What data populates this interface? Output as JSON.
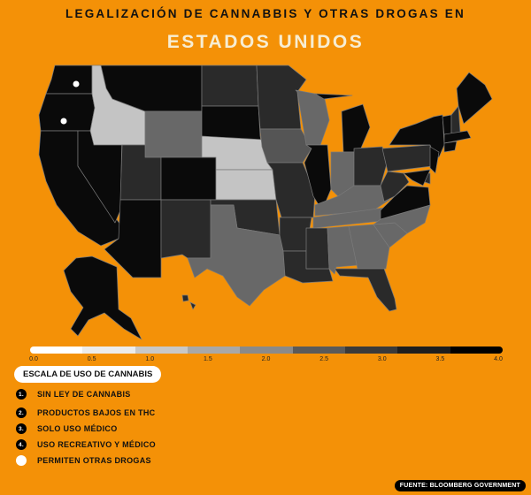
{
  "title_line1": "LEGALIZACIÓN DE CANNABBIS Y OTRAS DROGAS EN",
  "title_line2": "ESTADOS UNIDOS",
  "scale_ticks": [
    "0.0",
    "0.5",
    "1.0",
    "1.5",
    "2.0",
    "2.5",
    "3.0",
    "3.5",
    "4.0"
  ],
  "scale_colors": [
    "#ffffff",
    "#ececec",
    "#c8c8c8",
    "#a8a8a8",
    "#8a8a8a",
    "#5a5a5a",
    "#3a3a3a",
    "#1e1e1e",
    "#000000"
  ],
  "legend": {
    "title": "ESCALA DE USO DE CANNABIS",
    "items": [
      {
        "num": "1.",
        "label": "SIN LEY DE CANNABIS"
      },
      {
        "num": "2.",
        "label": "PRODUCTOS BAJOS EN THC"
      },
      {
        "num": "3.",
        "label": "SOLO USO MÉDICO"
      },
      {
        "num": "4.",
        "label": "USO RECREATIVO Y MÉDICO"
      }
    ],
    "other_drugs_label": "PERMITEN OTRAS DROGAS"
  },
  "source": "FUENTE: BLOOMBERG GOVERNMENT",
  "state_colors": {
    "WA": "#0a0a0a",
    "OR": "#0a0a0a",
    "CA": "#0a0a0a",
    "NV": "#0a0a0a",
    "ID": "#c4c4c4",
    "MT": "#0a0a0a",
    "WY": "#686868",
    "UT": "#2a2a2a",
    "CO": "#0a0a0a",
    "AZ": "#0a0a0a",
    "NM": "#2a2a2a",
    "ND": "#2a2a2a",
    "SD": "#0a0a0a",
    "NE": "#c4c4c4",
    "KS": "#c4c4c4",
    "OK": "#2a2a2a",
    "TX": "#686868",
    "MN": "#2a2a2a",
    "IA": "#555555",
    "MO": "#2a2a2a",
    "AR": "#2a2a2a",
    "LA": "#2a2a2a",
    "WI": "#686868",
    "IL": "#0a0a0a",
    "MI": "#0a0a0a",
    "IN": "#686868",
    "OH": "#2a2a2a",
    "KY": "#686868",
    "TN": "#686868",
    "MS": "#2a2a2a",
    "AL": "#686868",
    "GA": "#686868",
    "FL": "#2a2a2a",
    "SC": "#686868",
    "NC": "#686868",
    "VA": "#0a0a0a",
    "WV": "#2a2a2a",
    "PA": "#2a2a2a",
    "NY": "#0a0a0a",
    "VT": "#0a0a0a",
    "NH": "#2a2a2a",
    "ME": "#0a0a0a",
    "MA": "#0a0a0a",
    "CT": "#0a0a0a",
    "NJ": "#0a0a0a",
    "DE": "#2a2a2a",
    "MD": "#0a0a0a",
    "AK": "#0a0a0a",
    "HI": "#2a2a2a"
  },
  "other_drugs_states": [
    "WA",
    "OR"
  ]
}
